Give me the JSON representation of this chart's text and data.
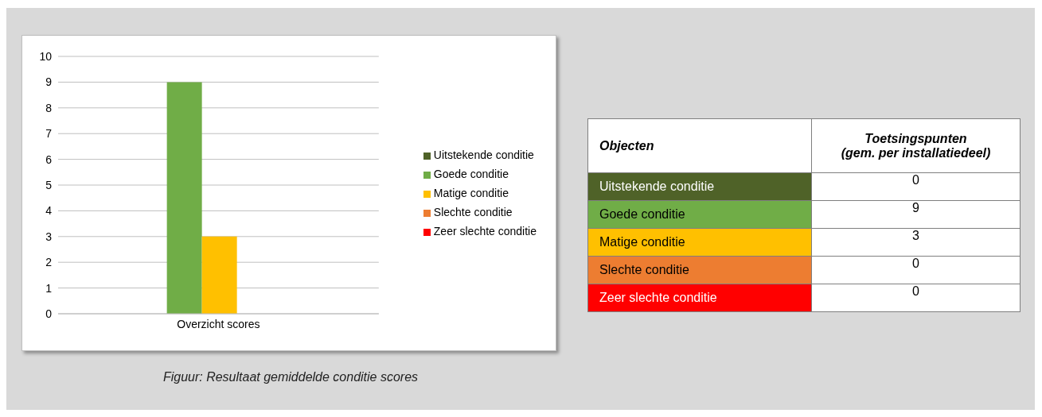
{
  "chart_data": [
    {
      "type": "bar",
      "categories": [
        "Overzicht scores"
      ],
      "series": [
        {
          "name": "Uitstekende conditie",
          "color": "#4f6228",
          "values": [
            0
          ]
        },
        {
          "name": "Goede conditie",
          "color": "#70ad47",
          "values": [
            9
          ]
        },
        {
          "name": "Matige conditie",
          "color": "#ffc000",
          "values": [
            3
          ]
        },
        {
          "name": "Slechte conditie",
          "color": "#ed7d31",
          "values": [
            0
          ]
        },
        {
          "name": "Zeer slechte conditie",
          "color": "#ff0000",
          "values": [
            0
          ]
        }
      ],
      "ylim": [
        0,
        10
      ],
      "yticks": [
        0,
        1,
        2,
        3,
        4,
        5,
        6,
        7,
        8,
        9,
        10
      ],
      "grid": "y",
      "legend": "right",
      "annotations": [
        "Figuur: Resultaat gemiddelde conditie scores"
      ]
    },
    {
      "type": "other",
      "categories": [
        "Uitstekende conditie",
        "Goede conditie",
        "Matige conditie",
        "Slechte conditie",
        "Zeer slechte conditie"
      ],
      "values": [
        0,
        9,
        3,
        0,
        0
      ],
      "data_labels": true,
      "annotations": [
        "Objecten",
        "Toetsingspunten\n(gem. per installatiedeel)"
      ]
    }
  ]
}
